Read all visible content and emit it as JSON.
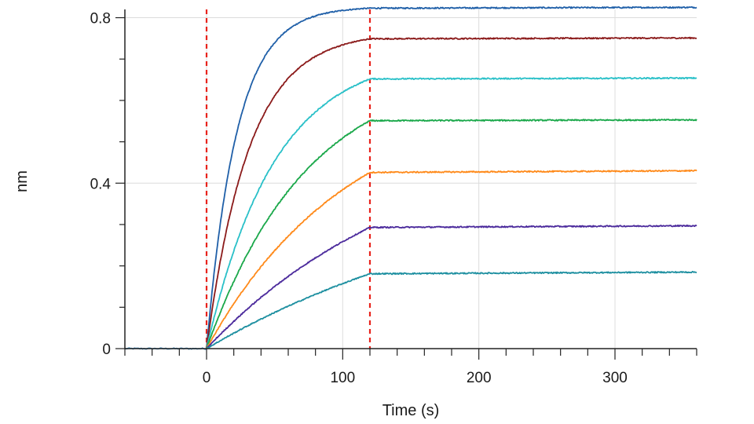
{
  "chart_data": {
    "type": "line",
    "xlabel": "Time (s)",
    "ylabel": "nm",
    "xlim": [
      -60,
      360
    ],
    "ylim": [
      0,
      0.82
    ],
    "x_ticks": [
      0,
      100,
      200,
      300
    ],
    "x_tick_labels": [
      "0",
      "100",
      "200",
      "300"
    ],
    "y_ticks": [
      0,
      0.4,
      0.8
    ],
    "y_tick_labels": [
      "0",
      "0.4",
      "0.8"
    ],
    "grid": true,
    "legend": "none",
    "markers": [
      0,
      120
    ],
    "marker_color": "#e8231c",
    "baseline_color": "#1f77b4",
    "series": [
      {
        "color": "#1f5fa8",
        "plateau": 0.823,
        "rate": 0.045
      },
      {
        "color": "#8b1a1a",
        "plateau": 0.749,
        "rate": 0.032
      },
      {
        "color": "#29c0c8",
        "plateau": 0.652,
        "rate": 0.02
      },
      {
        "color": "#1aa84a",
        "plateau": 0.551,
        "rate": 0.0135
      },
      {
        "color": "#ff8a1a",
        "plateau": 0.426,
        "rate": 0.0095
      },
      {
        "color": "#4b2a9c",
        "plateau": 0.293,
        "rate": 0.0065
      },
      {
        "color": "#1d8fa0",
        "plateau": 0.181,
        "rate": 0.0045
      }
    ]
  }
}
